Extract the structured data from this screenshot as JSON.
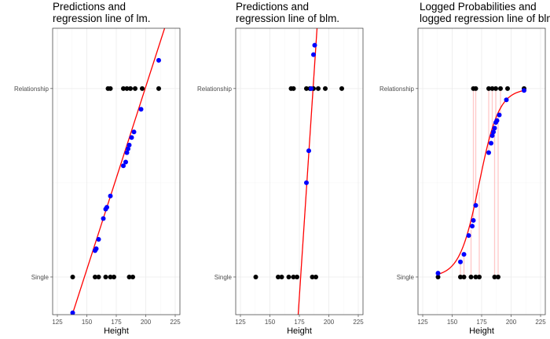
{
  "chart_data": [
    {
      "type": "scatter",
      "title_lines": [
        "Predictions and",
        "regression line of lm."
      ],
      "xlabel": "Height",
      "ylabel": "",
      "xlim": [
        121,
        229
      ],
      "ylim": [
        -0.2,
        1.32
      ],
      "x_ticks": [
        "125",
        "150",
        "175",
        "200",
        "225"
      ],
      "y_ticks": [
        {
          "label": "Single",
          "value": 0
        },
        {
          "label": "Relationship",
          "value": 1
        }
      ],
      "grid": true,
      "colors": {
        "observed": "#000000",
        "predicted": "#0000ff",
        "line": "#ff0000"
      },
      "observed": [
        {
          "x": 138,
          "y": 0
        },
        {
          "x": 157,
          "y": 0
        },
        {
          "x": 160,
          "y": 0
        },
        {
          "x": 166,
          "y": 0
        },
        {
          "x": 170,
          "y": 0
        },
        {
          "x": 173,
          "y": 0
        },
        {
          "x": 186,
          "y": 0
        },
        {
          "x": 189,
          "y": 0
        },
        {
          "x": 168,
          "y": 1
        },
        {
          "x": 170,
          "y": 1
        },
        {
          "x": 181,
          "y": 1
        },
        {
          "x": 184,
          "y": 1
        },
        {
          "x": 187,
          "y": 1
        },
        {
          "x": 191,
          "y": 1
        },
        {
          "x": 197,
          "y": 1
        },
        {
          "x": 211,
          "y": 1
        }
      ],
      "predicted": [
        {
          "x": 138,
          "y": -0.19
        },
        {
          "x": 157,
          "y": 0.14
        },
        {
          "x": 158,
          "y": 0.15
        },
        {
          "x": 160,
          "y": 0.2
        },
        {
          "x": 164,
          "y": 0.31
        },
        {
          "x": 166,
          "y": 0.36
        },
        {
          "x": 167,
          "y": 0.37
        },
        {
          "x": 170,
          "y": 0.43
        },
        {
          "x": 181,
          "y": 0.59
        },
        {
          "x": 183,
          "y": 0.61
        },
        {
          "x": 184,
          "y": 0.66
        },
        {
          "x": 185,
          "y": 0.68
        },
        {
          "x": 186,
          "y": 0.7
        },
        {
          "x": 188,
          "y": 0.74
        },
        {
          "x": 190,
          "y": 0.77
        },
        {
          "x": 196,
          "y": 0.89
        },
        {
          "x": 211,
          "y": 1.15
        }
      ],
      "line": {
        "kind": "linear",
        "points": [
          {
            "x": 133,
            "y": -0.29
          },
          {
            "x": 216,
            "y": 1.32
          }
        ]
      }
    },
    {
      "type": "scatter",
      "title_lines": [
        "Predictions and",
        "regression line of blm."
      ],
      "xlabel": "Height",
      "ylabel": "",
      "xlim": [
        121,
        229
      ],
      "ylim": [
        -0.2,
        1.32
      ],
      "x_ticks": [
        "125",
        "150",
        "175",
        "200",
        "225"
      ],
      "y_ticks": [
        {
          "label": "Single",
          "value": 0
        },
        {
          "label": "Relationship",
          "value": 1
        }
      ],
      "grid": true,
      "colors": {
        "observed": "#000000",
        "predicted": "#0000ff",
        "line": "#ff0000"
      },
      "observed": [
        {
          "x": 138,
          "y": 0
        },
        {
          "x": 157,
          "y": 0
        },
        {
          "x": 160,
          "y": 0
        },
        {
          "x": 166,
          "y": 0
        },
        {
          "x": 170,
          "y": 0
        },
        {
          "x": 173,
          "y": 0
        },
        {
          "x": 186,
          "y": 0
        },
        {
          "x": 189,
          "y": 0
        },
        {
          "x": 168,
          "y": 1
        },
        {
          "x": 170,
          "y": 1
        },
        {
          "x": 181,
          "y": 1
        },
        {
          "x": 184,
          "y": 1
        },
        {
          "x": 187,
          "y": 1
        },
        {
          "x": 191,
          "y": 1
        },
        {
          "x": 197,
          "y": 1
        },
        {
          "x": 211,
          "y": 1
        }
      ],
      "predicted": [
        {
          "x": 181,
          "y": 0.5
        },
        {
          "x": 183,
          "y": 0.67
        },
        {
          "x": 185,
          "y": 1.0
        },
        {
          "x": 187,
          "y": 1.18
        },
        {
          "x": 188,
          "y": 1.23
        }
      ],
      "line": {
        "kind": "linear",
        "points": [
          {
            "x": 174,
            "y": -0.2
          },
          {
            "x": 190,
            "y": 1.32
          }
        ]
      }
    },
    {
      "type": "scatter",
      "title_lines": [
        "Logged Probabilities and",
        "logged regression line of blm."
      ],
      "xlabel": "Height",
      "ylabel": "",
      "xlim": [
        121,
        229
      ],
      "ylim": [
        -0.2,
        1.32
      ],
      "x_ticks": [
        "125",
        "150",
        "175",
        "200",
        "225"
      ],
      "y_ticks": [
        {
          "label": "Single",
          "value": 0
        },
        {
          "label": "Relationship",
          "value": 1
        }
      ],
      "grid": true,
      "colors": {
        "observed": "#000000",
        "predicted": "#0000ff",
        "line": "#ff0000",
        "residual": "#ffc8c8"
      },
      "observed": [
        {
          "x": 138,
          "y": 0
        },
        {
          "x": 157,
          "y": 0
        },
        {
          "x": 160,
          "y": 0
        },
        {
          "x": 166,
          "y": 0
        },
        {
          "x": 170,
          "y": 0
        },
        {
          "x": 173,
          "y": 0
        },
        {
          "x": 186,
          "y": 0
        },
        {
          "x": 189,
          "y": 0
        },
        {
          "x": 168,
          "y": 1
        },
        {
          "x": 170,
          "y": 1
        },
        {
          "x": 181,
          "y": 1
        },
        {
          "x": 184,
          "y": 1
        },
        {
          "x": 187,
          "y": 1
        },
        {
          "x": 191,
          "y": 1
        },
        {
          "x": 197,
          "y": 1
        },
        {
          "x": 211,
          "y": 1
        }
      ],
      "predicted": [
        {
          "x": 138,
          "y": 0.02
        },
        {
          "x": 157,
          "y": 0.08
        },
        {
          "x": 160,
          "y": 0.12
        },
        {
          "x": 164,
          "y": 0.22
        },
        {
          "x": 167,
          "y": 0.27
        },
        {
          "x": 168,
          "y": 0.3
        },
        {
          "x": 170,
          "y": 0.38
        },
        {
          "x": 181,
          "y": 0.66
        },
        {
          "x": 183,
          "y": 0.71
        },
        {
          "x": 184,
          "y": 0.75
        },
        {
          "x": 185,
          "y": 0.77
        },
        {
          "x": 186,
          "y": 0.79
        },
        {
          "x": 187,
          "y": 0.82
        },
        {
          "x": 188,
          "y": 0.83
        },
        {
          "x": 190,
          "y": 0.86
        },
        {
          "x": 196,
          "y": 0.94
        },
        {
          "x": 211,
          "y": 0.99
        }
      ],
      "residuals": [
        {
          "x": 157,
          "from": 0.0,
          "to": 0.08
        },
        {
          "x": 160,
          "from": 0.0,
          "to": 0.12
        },
        {
          "x": 166,
          "from": 0.0,
          "to": 0.25
        },
        {
          "x": 168,
          "from": 1.0,
          "to": 0.3
        },
        {
          "x": 170,
          "from": 1.0,
          "to": 0.38
        },
        {
          "x": 173,
          "from": 0.0,
          "to": 0.45
        },
        {
          "x": 181,
          "from": 1.0,
          "to": 0.66
        },
        {
          "x": 184,
          "from": 1.0,
          "to": 0.75
        },
        {
          "x": 186,
          "from": 0.0,
          "to": 0.79
        },
        {
          "x": 187,
          "from": 1.0,
          "to": 0.82
        },
        {
          "x": 189,
          "from": 0.0,
          "to": 0.85
        },
        {
          "x": 191,
          "from": 1.0,
          "to": 0.87
        }
      ],
      "line": {
        "kind": "logistic",
        "x0": 173,
        "k": 0.12,
        "from": 138,
        "to": 213
      }
    }
  ]
}
